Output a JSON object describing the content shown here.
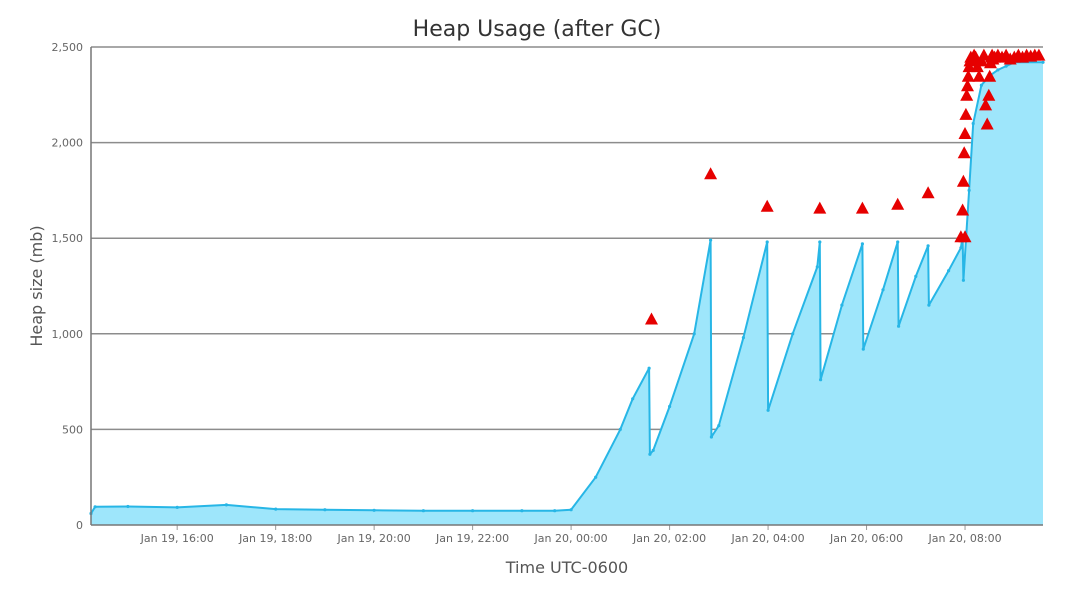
{
  "chart_data": {
    "type": "area",
    "title": "Heap Usage (after GC)",
    "xlabel": "Time UTC-0600",
    "ylabel": "Heap size (mb)",
    "ylim": [
      0,
      2500
    ],
    "y_ticks": [
      0,
      500,
      1000,
      1500,
      2000,
      2500
    ],
    "y_tick_labels": [
      "0",
      "500",
      "1,000",
      "1,500",
      "2,000",
      "2,500"
    ],
    "xlim": [
      "2016-01-19T14:15",
      "2016-01-20T09:35"
    ],
    "x_ticks": [
      "2016-01-19T16:00",
      "2016-01-19T18:00",
      "2016-01-19T20:00",
      "2016-01-19T22:00",
      "2016-01-20T00:00",
      "2016-01-20T02:00",
      "2016-01-20T04:00",
      "2016-01-20T06:00",
      "2016-01-20T08:00"
    ],
    "x_tick_labels": [
      "Jan 19, 16:00",
      "Jan 19, 18:00",
      "Jan 19, 20:00",
      "Jan 19, 22:00",
      "Jan 20, 00:00",
      "Jan 20, 02:00",
      "Jan 20, 04:00",
      "Jan 20, 06:00",
      "Jan 20, 08:00"
    ],
    "grid": "horizontal",
    "legend": "none",
    "colors": {
      "area_fill": "#9ee6fb",
      "line": "#27b6e6",
      "marker": "#e60000",
      "grid": "#8c8c8c"
    },
    "series": [
      {
        "type": "area",
        "x": [
          "2016-01-19T14:15",
          "2016-01-19T14:20",
          "2016-01-19T15:00",
          "2016-01-19T16:00",
          "2016-01-19T17:00",
          "2016-01-19T18:00",
          "2016-01-19T19:00",
          "2016-01-19T20:00",
          "2016-01-19T21:00",
          "2016-01-19T22:00",
          "2016-01-19T23:00",
          "2016-01-19T23:40",
          "2016-01-20T00:00",
          "2016-01-20T00:30",
          "2016-01-20T01:00",
          "2016-01-20T01:15",
          "2016-01-20T01:35",
          "2016-01-20T01:36",
          "2016-01-20T01:40",
          "2016-01-20T02:00",
          "2016-01-20T02:30",
          "2016-01-20T02:50",
          "2016-01-20T02:51",
          "2016-01-20T03:00",
          "2016-01-20T03:30",
          "2016-01-20T03:59",
          "2016-01-20T04:00",
          "2016-01-20T04:30",
          "2016-01-20T05:00",
          "2016-01-20T05:03",
          "2016-01-20T05:04",
          "2016-01-20T05:30",
          "2016-01-20T05:55",
          "2016-01-20T05:56",
          "2016-01-20T06:20",
          "2016-01-20T06:38",
          "2016-01-20T06:39",
          "2016-01-20T07:00",
          "2016-01-20T07:15",
          "2016-01-20T07:16",
          "2016-01-20T07:40",
          "2016-01-20T07:55",
          "2016-01-20T07:57",
          "2016-01-20T07:58",
          "2016-01-20T08:05",
          "2016-01-20T08:10",
          "2016-01-20T08:20",
          "2016-01-20T08:30",
          "2016-01-20T08:40",
          "2016-01-20T08:50",
          "2016-01-20T09:00",
          "2016-01-20T09:35"
        ],
        "y": [
          60,
          95,
          97,
          92,
          105,
          83,
          80,
          77,
          75,
          75,
          75,
          75,
          80,
          250,
          500,
          660,
          820,
          370,
          390,
          620,
          1000,
          1490,
          460,
          520,
          980,
          1480,
          600,
          1000,
          1350,
          1480,
          760,
          1150,
          1470,
          920,
          1230,
          1480,
          1040,
          1300,
          1460,
          1150,
          1330,
          1450,
          1510,
          1280,
          1750,
          2100,
          2300,
          2350,
          2380,
          2400,
          2420,
          2420
        ]
      },
      {
        "type": "scatter",
        "marker": "triangle-up",
        "x": [
          "2016-01-20T01:38",
          "2016-01-20T02:50",
          "2016-01-20T03:59",
          "2016-01-20T05:03",
          "2016-01-20T05:55",
          "2016-01-20T06:38",
          "2016-01-20T07:15",
          "2016-01-20T07:55",
          "2016-01-20T08:00",
          "2016-01-20T07:57",
          "2016-01-20T07:58",
          "2016-01-20T07:59",
          "2016-01-20T08:00",
          "2016-01-20T08:01",
          "2016-01-20T08:02",
          "2016-01-20T08:03",
          "2016-01-20T08:04",
          "2016-01-20T08:05",
          "2016-01-20T08:06",
          "2016-01-20T08:07",
          "2016-01-20T08:09",
          "2016-01-20T08:11",
          "2016-01-20T08:13",
          "2016-01-20T08:15",
          "2016-01-20T08:17",
          "2016-01-20T08:20",
          "2016-01-20T08:23",
          "2016-01-20T08:25",
          "2016-01-20T08:27",
          "2016-01-20T08:29",
          "2016-01-20T08:30",
          "2016-01-20T08:31",
          "2016-01-20T08:32",
          "2016-01-20T08:33",
          "2016-01-20T08:34",
          "2016-01-20T08:36",
          "2016-01-20T08:40",
          "2016-01-20T08:45",
          "2016-01-20T08:50",
          "2016-01-20T08:55",
          "2016-01-20T09:00",
          "2016-01-20T09:05",
          "2016-01-20T09:10",
          "2016-01-20T09:15",
          "2016-01-20T09:20",
          "2016-01-20T09:25",
          "2016-01-20T09:30"
        ],
        "y": [
          1080,
          1840,
          1670,
          1660,
          1660,
          1680,
          1740,
          1510,
          1510,
          1650,
          1800,
          1950,
          2050,
          2150,
          2250,
          2300,
          2350,
          2400,
          2430,
          2450,
          2440,
          2460,
          2450,
          2400,
          2350,
          2430,
          2460,
          2200,
          2100,
          2250,
          2350,
          2420,
          2450,
          2460,
          2440,
          2450,
          2460,
          2450,
          2460,
          2440,
          2450,
          2460,
          2450,
          2460,
          2455,
          2460,
          2460
        ]
      }
    ]
  }
}
